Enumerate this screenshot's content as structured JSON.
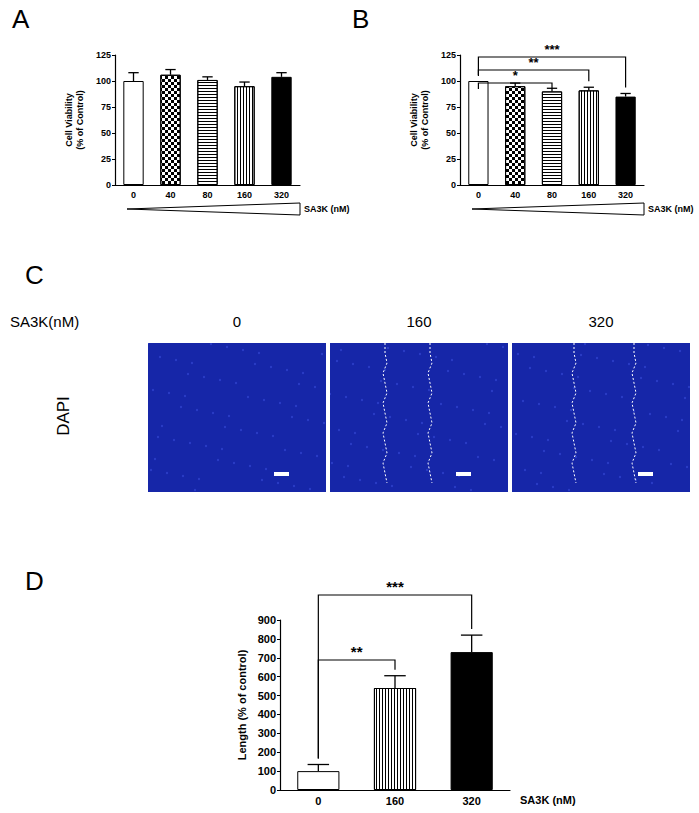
{
  "chart_data": [
    {
      "panel": "A",
      "type": "bar",
      "categories": [
        "0",
        "40",
        "80",
        "160",
        "320"
      ],
      "values": [
        100,
        106,
        101,
        95,
        104
      ],
      "errors": [
        8,
        5,
        3,
        4,
        4
      ],
      "colors": [
        "#ffffff",
        "#ffffff",
        "#ffffff",
        "#ffffff",
        "#000000"
      ],
      "ylabel": "Cell Viability\n(% of Control)",
      "xlabel": "SA3K (nM)",
      "ylim": [
        0,
        125
      ],
      "yticks": [
        0,
        25,
        50,
        75,
        100,
        125
      ],
      "grid": false
    },
    {
      "panel": "B",
      "type": "bar",
      "categories": [
        "0",
        "40",
        "80",
        "160",
        "320"
      ],
      "values": [
        100,
        95,
        90,
        91,
        85
      ],
      "errors": [
        0,
        3,
        3,
        3,
        3
      ],
      "colors": [
        "#ffffff",
        "#ffffff",
        "#ffffff",
        "#ffffff",
        "#000000"
      ],
      "ylabel": "Cell Viability\n(% of Control)",
      "xlabel": "SA3K (nM)",
      "ylim": [
        0,
        125
      ],
      "yticks": [
        0,
        25,
        50,
        75,
        100,
        125
      ],
      "grid": false,
      "annotations": [
        {
          "from": "0",
          "to": "80",
          "label": "*"
        },
        {
          "from": "0",
          "to": "160",
          "label": "**"
        },
        {
          "from": "0",
          "to": "320",
          "label": "***"
        }
      ]
    },
    {
      "panel": "D",
      "type": "bar",
      "categories": [
        "0",
        "160",
        "320"
      ],
      "values": [
        100,
        540,
        730
      ],
      "errors": [
        35,
        65,
        90
      ],
      "colors": [
        "#ffffff",
        "#ffffff",
        "#000000"
      ],
      "ylabel": "Length (% of control)",
      "xlabel": "SA3K (nM)",
      "ylim": [
        0,
        900
      ],
      "yticks": [
        0,
        100,
        200,
        300,
        400,
        500,
        600,
        700,
        800,
        900
      ],
      "grid": false,
      "annotations": [
        {
          "from": "0",
          "to": "160",
          "label": "**"
        },
        {
          "from": "0",
          "to": "320",
          "label": "***"
        }
      ]
    }
  ],
  "panel_c": {
    "panel": "C",
    "column_title": "SA3K(nM)",
    "columns": [
      "0",
      "160",
      "320"
    ],
    "row_label": "DAPI"
  }
}
